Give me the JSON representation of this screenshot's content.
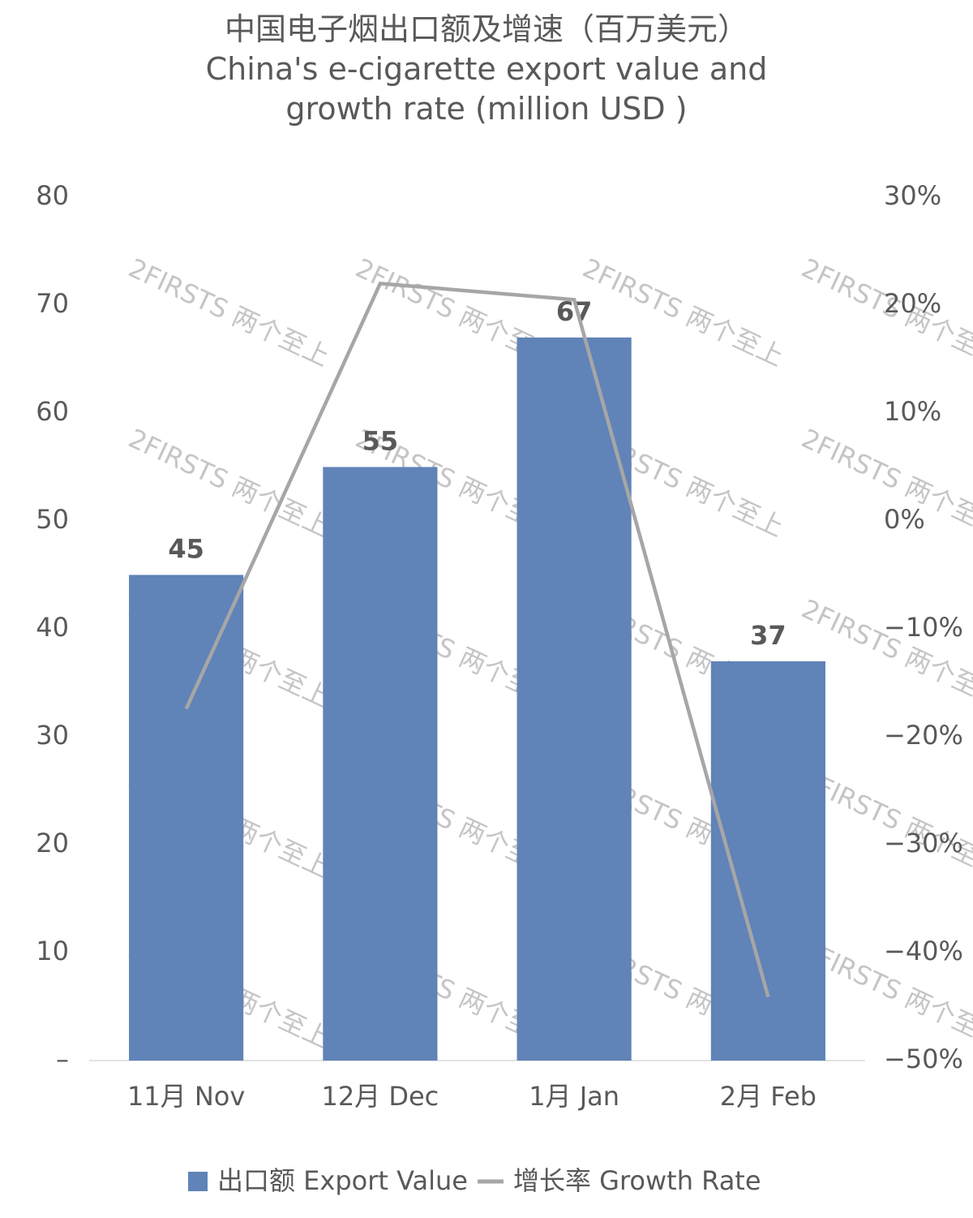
{
  "chart_data": {
    "type": "bar_line",
    "title": "中国电子烟出口额及增速（百万美元）",
    "subtitle": "China's e-cigarette export value and growth rate (million USD )",
    "watermark": "2FIRSTS 两个至上",
    "categories": [
      "11月 Nov",
      "12月 Dec",
      "1月 Jan",
      "2月 Feb"
    ],
    "series": [
      {
        "name": "出口额 Export Value",
        "type": "bar",
        "color": "#6083b8",
        "values": [
          45,
          55,
          67,
          37
        ]
      },
      {
        "name": "增长率 Growth Rate",
        "type": "line",
        "color": "#a6a6a6",
        "axis": "y2",
        "values": [
          -17.4,
          22.0,
          20.5,
          -44.1
        ]
      }
    ],
    "ylim": [
      0,
      80
    ],
    "yticks": [
      {
        "value": 0,
        "label": "–"
      },
      10,
      20,
      30,
      40,
      50,
      60,
      70,
      80
    ],
    "y2lim": [
      -50,
      30
    ],
    "y2ticks": [
      {
        "value": -50,
        "label": "−50%"
      },
      {
        "value": -40,
        "label": "−40%"
      },
      {
        "value": -30,
        "label": "−30%"
      },
      {
        "value": -20,
        "label": "−20%"
      },
      {
        "value": -10,
        "label": "−10%"
      },
      {
        "value": 0,
        "label": "0%"
      },
      {
        "value": 10,
        "label": "10%"
      },
      {
        "value": 20,
        "label": "20%"
      },
      {
        "value": 30,
        "label": "30%"
      }
    ],
    "legend": "bottom"
  }
}
